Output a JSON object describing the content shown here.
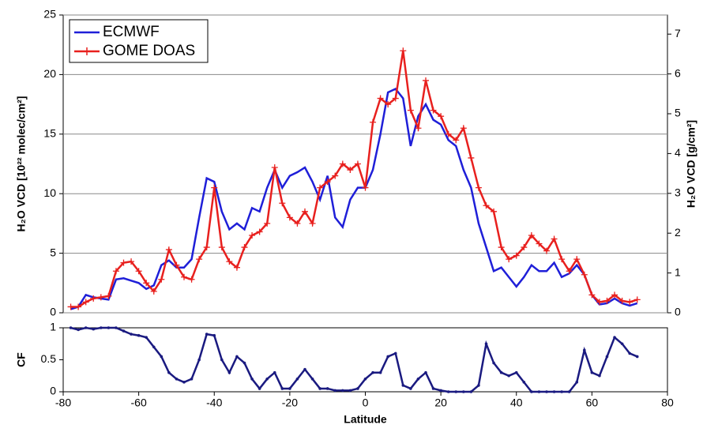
{
  "chart_data": [
    {
      "type": "line",
      "ylabel": "H₂O VCD [10²² molec/cm²]",
      "y2label": "H₂O VCD [g/cm²]",
      "xlim": [
        -80,
        80
      ],
      "ylim": [
        0,
        25
      ],
      "yticks": [
        0,
        5,
        10,
        15,
        20,
        25
      ],
      "y2lim": [
        0,
        7.48
      ],
      "y2ticks": [
        0,
        1,
        2,
        3,
        4,
        5,
        6,
        7
      ],
      "grid": true,
      "legend": "upper left",
      "x": [
        -78,
        -76,
        -74,
        -72,
        -70,
        -68,
        -66,
        -64,
        -62,
        -60,
        -58,
        -56,
        -54,
        -52,
        -50,
        -48,
        -46,
        -44,
        -42,
        -40,
        -38,
        -36,
        -34,
        -32,
        -30,
        -28,
        -26,
        -24,
        -22,
        -20,
        -18,
        -16,
        -14,
        -12,
        -10,
        -8,
        -6,
        -4,
        -2,
        0,
        2,
        4,
        6,
        8,
        10,
        12,
        14,
        16,
        18,
        20,
        22,
        24,
        26,
        28,
        30,
        32,
        34,
        36,
        38,
        40,
        42,
        44,
        46,
        48,
        50,
        52,
        54,
        56,
        58,
        60,
        62,
        64,
        66,
        68,
        70,
        72
      ],
      "series": [
        {
          "name": "ECMWF",
          "color": "#1f1fd8",
          "marker": "none",
          "values": [
            0.3,
            0.5,
            1.5,
            1.3,
            1.2,
            1.1,
            2.8,
            2.9,
            2.7,
            2.5,
            2.0,
            2.3,
            4.0,
            4.4,
            3.8,
            3.8,
            4.5,
            8,
            11.3,
            11.0,
            8.5,
            7.0,
            7.5,
            7.0,
            8.8,
            8.5,
            10.5,
            12.0,
            10.5,
            11.5,
            11.8,
            12.2,
            11.0,
            9.5,
            11.5,
            8.0,
            7.2,
            9.5,
            10.5,
            10.5,
            12.0,
            15.0,
            18.5,
            18.8,
            18.0,
            14.0,
            16.5,
            17.5,
            16.2,
            15.8,
            14.5,
            14.0,
            12.0,
            10.5,
            7.5,
            5.5,
            3.5,
            3.8,
            3.0,
            2.2,
            3.0,
            4.0,
            3.5,
            3.5,
            4.2,
            3.0,
            3.3,
            4.0,
            3.2,
            1.5,
            0.7,
            0.8,
            1.2,
            0.8,
            0.6,
            0.8
          ]
        },
        {
          "name": "GOME DOAS",
          "color": "#e8201e",
          "marker": "plus",
          "values": [
            0.5,
            0.5,
            0.9,
            1.2,
            1.3,
            1.4,
            3.5,
            4.2,
            4.3,
            3.5,
            2.5,
            1.8,
            2.8,
            5.3,
            4.0,
            3.0,
            2.8,
            4.5,
            5.5,
            10.5,
            5.5,
            4.3,
            3.8,
            5.5,
            6.5,
            6.8,
            7.5,
            12.2,
            9.2,
            8.0,
            7.5,
            8.5,
            7.5,
            10.5,
            11.0,
            11.5,
            12.5,
            12.0,
            12.5,
            10.5,
            16.0,
            18.0,
            17.5,
            18.0,
            22.0,
            17.0,
            15.5,
            19.5,
            17.0,
            16.5,
            15.0,
            14.5,
            15.5,
            13.0,
            10.5,
            9.0,
            8.5,
            5.5,
            4.5,
            4.8,
            5.5,
            6.5,
            5.8,
            5.2,
            6.2,
            4.5,
            3.5,
            4.5,
            3.2,
            1.5,
            0.9,
            1.0,
            1.5,
            1.0,
            0.9,
            1.1
          ]
        }
      ]
    },
    {
      "type": "line",
      "ylabel": "CF",
      "xlabel": "Latitude",
      "xlim": [
        -80,
        80
      ],
      "xticks": [
        -80,
        -60,
        -40,
        -20,
        0,
        20,
        40,
        60,
        80
      ],
      "ylim": [
        0,
        1
      ],
      "yticks": [
        0,
        0.5,
        1
      ],
      "grid": false,
      "x": [
        -78,
        -76,
        -74,
        -72,
        -70,
        -68,
        -66,
        -64,
        -62,
        -60,
        -58,
        -56,
        -54,
        -52,
        -50,
        -48,
        -46,
        -44,
        -42,
        -40,
        -38,
        -36,
        -34,
        -32,
        -30,
        -28,
        -26,
        -24,
        -22,
        -20,
        -18,
        -16,
        -14,
        -12,
        -10,
        -8,
        -6,
        -4,
        -2,
        0,
        2,
        4,
        6,
        8,
        10,
        12,
        14,
        16,
        18,
        20,
        22,
        24,
        26,
        28,
        30,
        32,
        34,
        36,
        38,
        40,
        42,
        44,
        46,
        48,
        50,
        52,
        54,
        56,
        58,
        60,
        62,
        64,
        66,
        68,
        70,
        72
      ],
      "series": [
        {
          "color": "#1a1a80",
          "marker": "dot",
          "values": [
            1,
            0.97,
            1,
            0.98,
            1,
            1,
            1,
            0.95,
            0.9,
            0.88,
            0.85,
            0.7,
            0.55,
            0.3,
            0.2,
            0.15,
            0.2,
            0.5,
            0.9,
            0.88,
            0.5,
            0.3,
            0.55,
            0.45,
            0.2,
            0.05,
            0.2,
            0.3,
            0.05,
            0.05,
            0.2,
            0.35,
            0.2,
            0.05,
            0.05,
            0.02,
            0.02,
            0.02,
            0.05,
            0.2,
            0.3,
            0.3,
            0.55,
            0.6,
            0.1,
            0.05,
            0.2,
            0.3,
            0.05,
            0.02,
            0,
            0,
            0,
            0,
            0.1,
            0.75,
            0.45,
            0.3,
            0.25,
            0.3,
            0.15,
            0,
            0,
            0,
            0,
            0,
            0,
            0.15,
            0.65,
            0.3,
            0.25,
            0.55,
            0.85,
            0.75,
            0.6,
            0.55
          ]
        }
      ]
    }
  ]
}
